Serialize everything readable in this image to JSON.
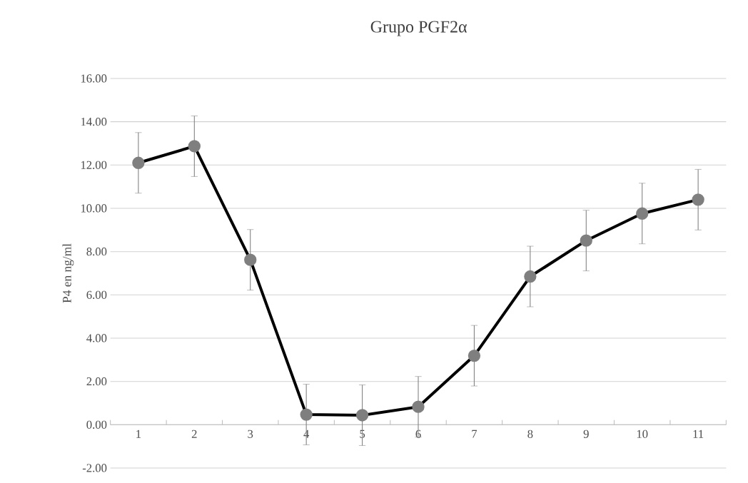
{
  "chart_data": {
    "type": "line",
    "title": "Grupo PGF2α",
    "ylabel": "P4 en ng/ml",
    "categories": [
      "1",
      "2",
      "3",
      "4",
      "5",
      "6",
      "7",
      "8",
      "9",
      "10",
      "11"
    ],
    "series": [
      {
        "color": "#000000",
        "colors": [
          "#7f7f7f",
          "#7f7f7f",
          "#7f7f7f",
          "#7f7f7f",
          "#7f7f7f",
          "#7f7f7f",
          "#7f7f7f",
          "#7f7f7f",
          "#7f7f7f",
          "#7f7f7f",
          "#7f7f7f"
        ],
        "values": [
          12.1,
          12.87,
          7.62,
          0.47,
          0.44,
          0.83,
          3.19,
          6.85,
          8.51,
          9.76,
          10.4
        ],
        "errors": [
          1.4,
          1.4,
          1.4,
          1.4,
          1.4,
          1.4,
          1.4,
          1.4,
          1.4,
          1.4,
          1.4
        ]
      }
    ],
    "ylim": [
      -2,
      16
    ],
    "yticks": [
      {
        "value": -2,
        "label": "-2.00"
      },
      {
        "value": 0,
        "label": "0.00"
      },
      {
        "value": 2,
        "label": "2.00"
      },
      {
        "value": 4,
        "label": "4.00"
      },
      {
        "value": 6,
        "label": "6.00"
      },
      {
        "value": 8,
        "label": "8.00"
      },
      {
        "value": 10,
        "label": "10.00"
      },
      {
        "value": 12,
        "label": "12.00"
      },
      {
        "value": 14,
        "label": "14.00"
      },
      {
        "value": 16,
        "label": "16.00"
      }
    ],
    "grid": "y",
    "marker": "circle",
    "line_style": "solid"
  }
}
